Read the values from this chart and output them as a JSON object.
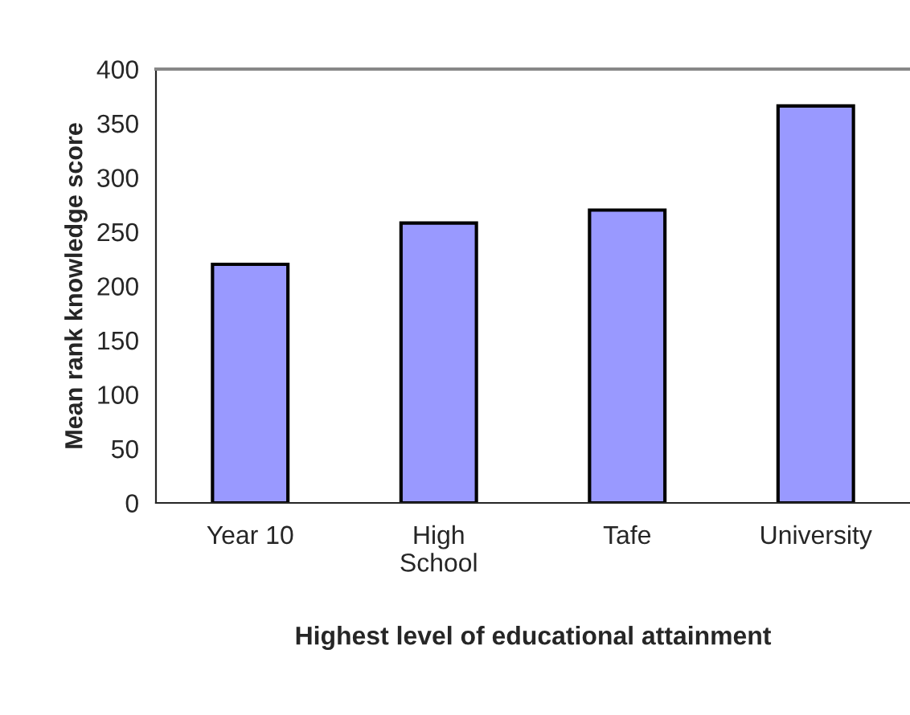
{
  "chart_data": {
    "type": "bar",
    "xlabel": "Highest level of educational attainment",
    "ylabel": "Mean rank knowledge score",
    "categories": [
      "Year 10",
      "High\nSchool",
      "Tafe",
      "University"
    ],
    "values": [
      220,
      258,
      270,
      366
    ],
    "color": "#9999ff",
    "ylim": [
      0,
      400
    ],
    "yticks": [
      0,
      50,
      100,
      150,
      200,
      250,
      300,
      350,
      400
    ],
    "grid": false,
    "legend": false
  }
}
